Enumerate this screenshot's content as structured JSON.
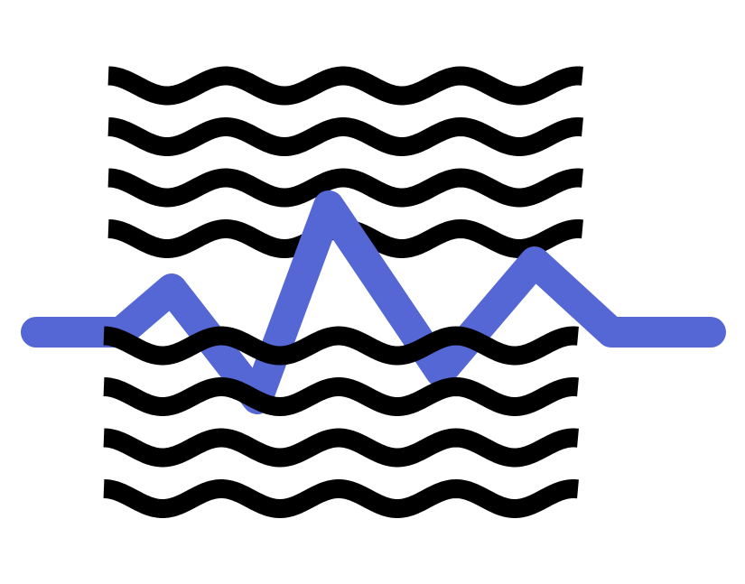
{
  "artwork": {
    "background_color": "#ffffff",
    "wave_color": "#000000",
    "signal_color": "#5566d5",
    "upper_wave_count": 4,
    "lower_wave_count": 4,
    "signal_icon": "zigzag-signal-line"
  }
}
